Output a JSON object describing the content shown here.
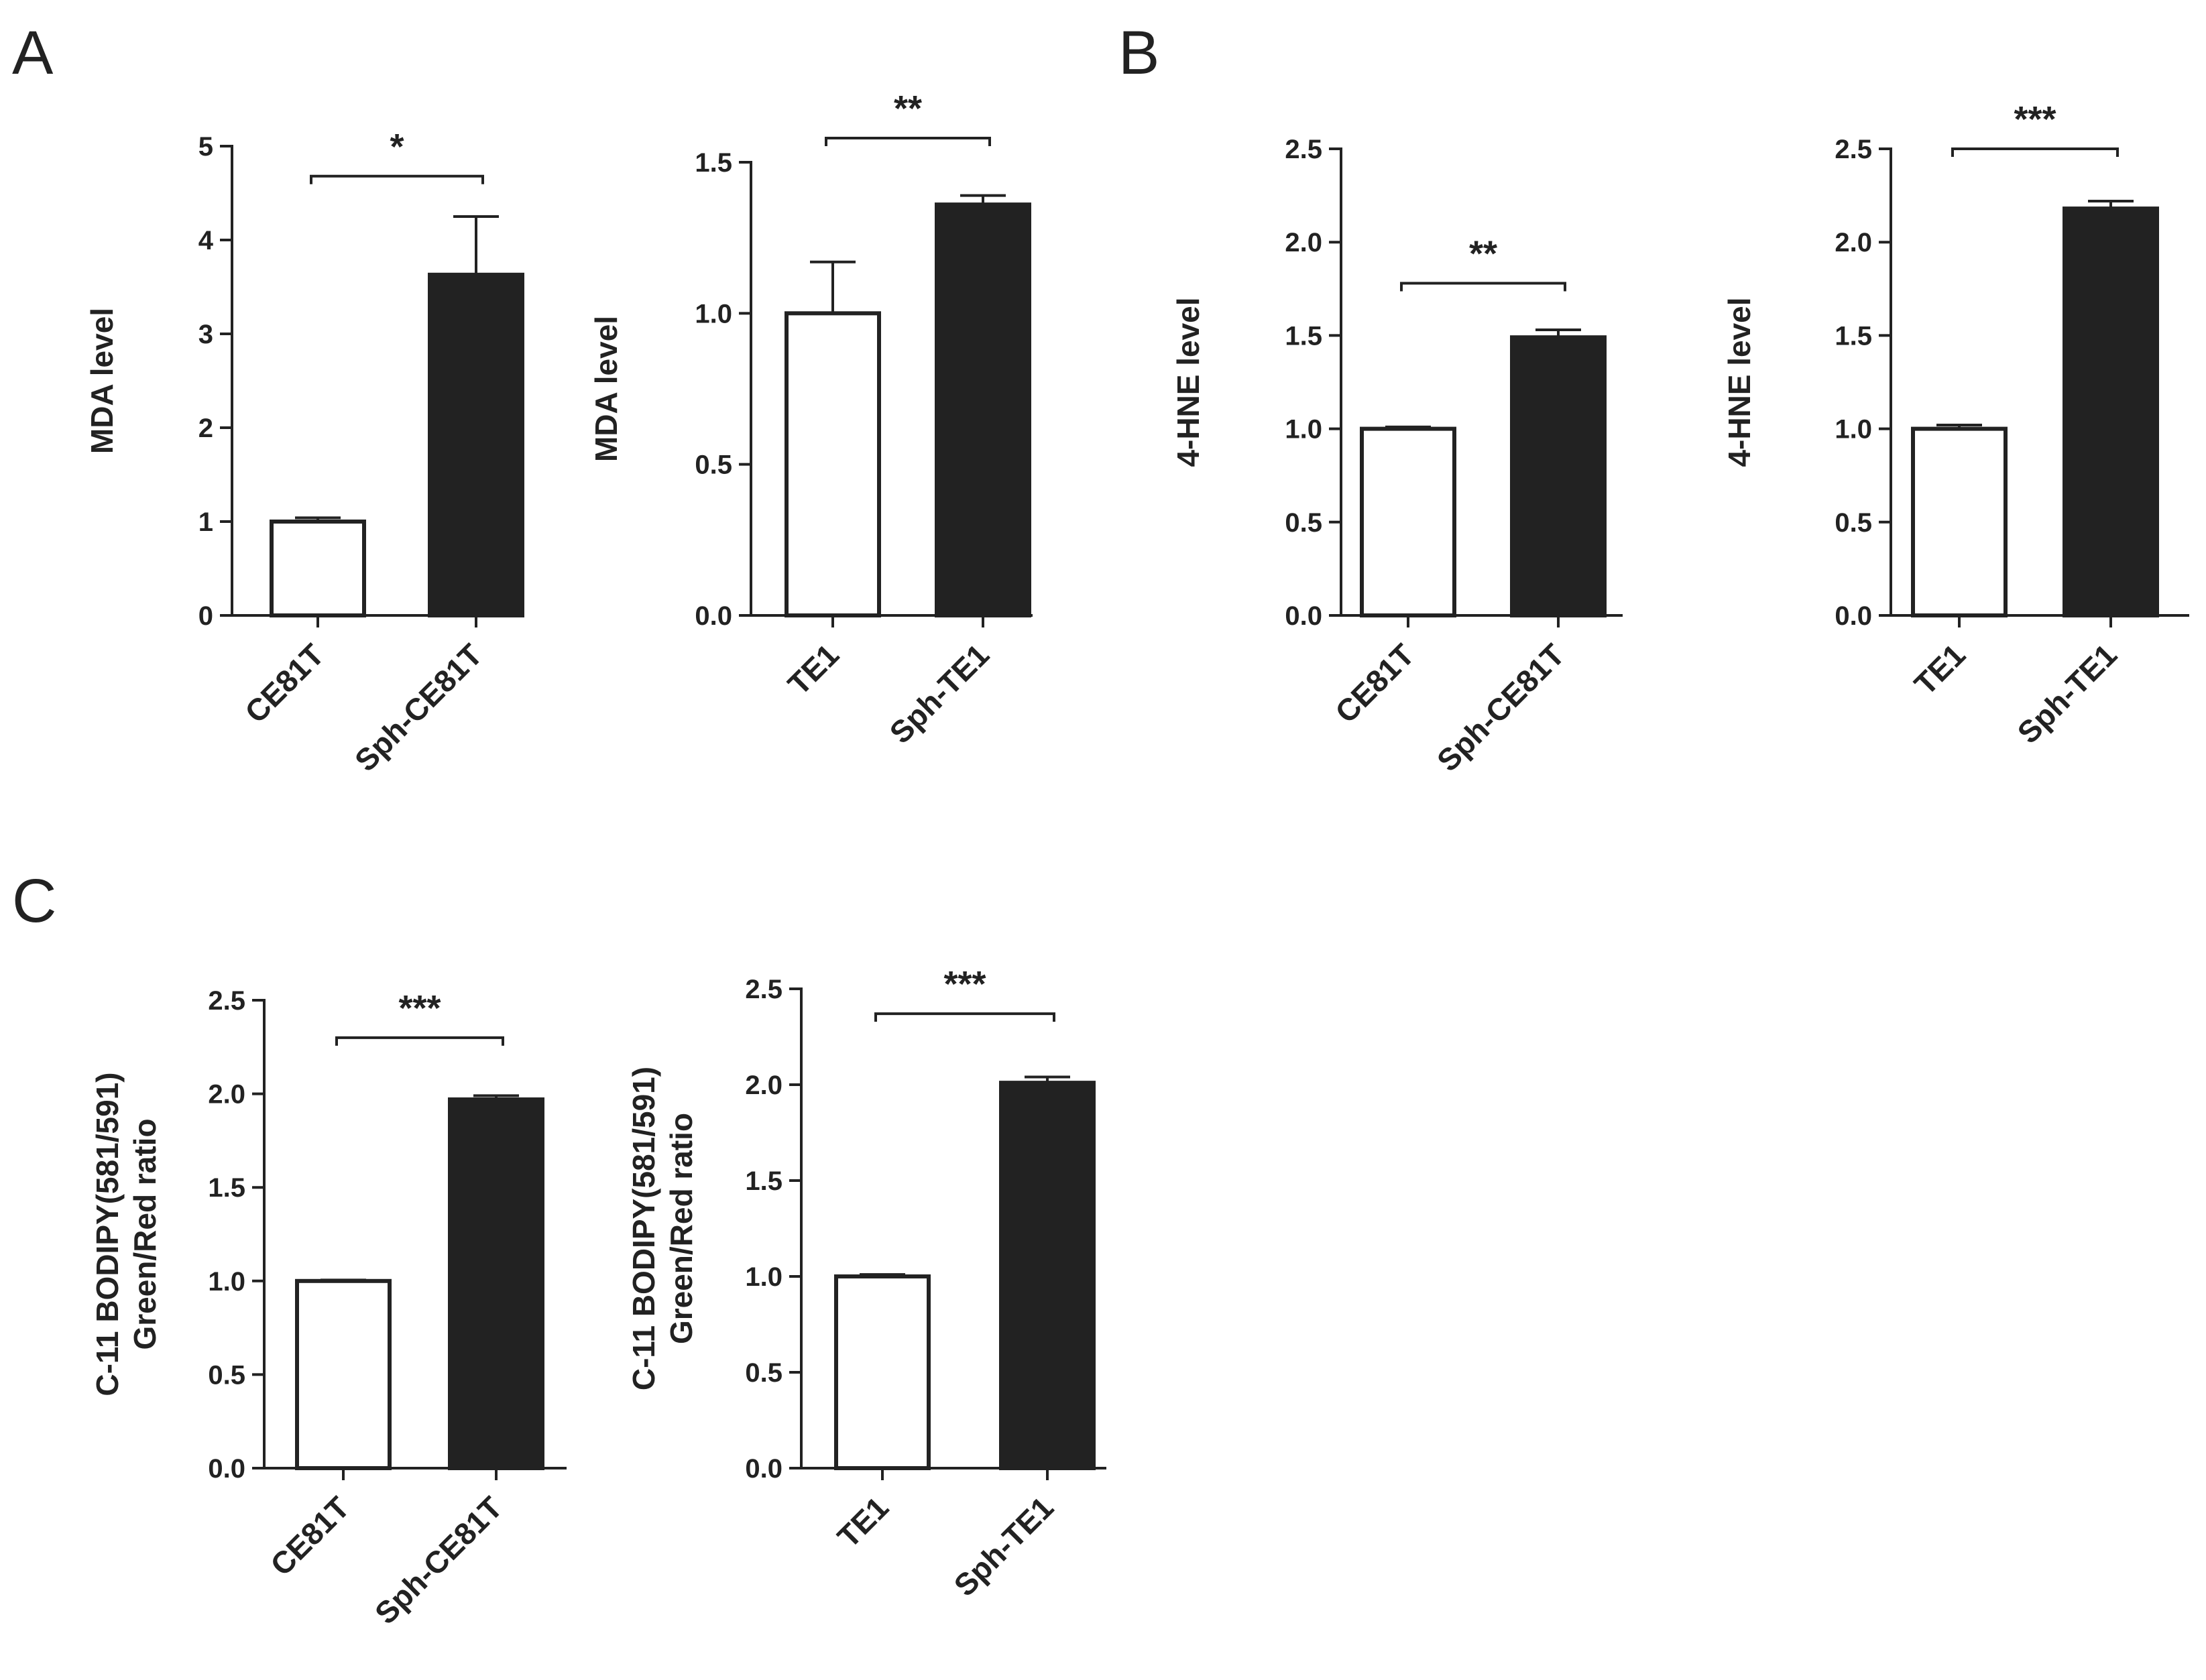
{
  "panels": [
    {
      "letter": "A"
    },
    {
      "letter": "B"
    },
    {
      "letter": "C"
    }
  ],
  "chart_data": [
    {
      "type": "bar",
      "panel": "A",
      "title": "",
      "categories": [
        "CE81T",
        "Sph-CE81T"
      ],
      "values": [
        1.0,
        3.63
      ],
      "errors": [
        0.04,
        0.62
      ],
      "bar_colors": [
        "#ffffff",
        "#222222"
      ],
      "ylabel": [
        "MDA level"
      ],
      "ylim": [
        0,
        5
      ],
      "yticks": [
        0,
        1,
        2,
        3,
        4,
        5
      ],
      "ytick_labels": [
        "0",
        "1",
        "2",
        "3",
        "4",
        "5"
      ],
      "significance": "*",
      "sig_y": 4.68
    },
    {
      "type": "bar",
      "panel": "A",
      "title": "",
      "categories": [
        "TE1",
        "Sph-TE1"
      ],
      "values": [
        1.0,
        1.36
      ],
      "errors": [
        0.17,
        0.03
      ],
      "bar_colors": [
        "#ffffff",
        "#222222"
      ],
      "ylabel": [
        "MDA level"
      ],
      "ylim": [
        0,
        1.5
      ],
      "yticks": [
        0,
        0.5,
        1.0,
        1.5
      ],
      "ytick_labels": [
        "0.0",
        "0.5",
        "1.0",
        "1.5"
      ],
      "significance": "**",
      "sig_y": 1.58
    },
    {
      "type": "bar",
      "panel": "B",
      "title": "",
      "categories": [
        "CE81T",
        "Sph-CE81T"
      ],
      "values": [
        1.0,
        1.49
      ],
      "errors": [
        0.01,
        0.04
      ],
      "bar_colors": [
        "#ffffff",
        "#222222"
      ],
      "ylabel": [
        "4-HNE level"
      ],
      "ylim": [
        0,
        2.5
      ],
      "yticks": [
        0,
        0.5,
        1.0,
        1.5,
        2.0,
        2.5
      ],
      "ytick_labels": [
        "0.0",
        "0.5",
        "1.0",
        "1.5",
        "2.0",
        "2.5"
      ],
      "significance": "**",
      "sig_y": 1.78
    },
    {
      "type": "bar",
      "panel": "B",
      "title": "",
      "categories": [
        "TE1",
        "Sph-TE1"
      ],
      "values": [
        1.0,
        2.18
      ],
      "errors": [
        0.02,
        0.04
      ],
      "bar_colors": [
        "#ffffff",
        "#222222"
      ],
      "ylabel": [
        "4-HNE level"
      ],
      "ylim": [
        0,
        2.5
      ],
      "yticks": [
        0,
        0.5,
        1.0,
        1.5,
        2.0,
        2.5
      ],
      "ytick_labels": [
        "0.0",
        "0.5",
        "1.0",
        "1.5",
        "2.0",
        "2.5"
      ],
      "significance": "***",
      "sig_y": 2.5
    },
    {
      "type": "bar",
      "panel": "C",
      "title": "",
      "categories": [
        "CE81T",
        "Sph-CE81T"
      ],
      "values": [
        1.0,
        1.97
      ],
      "errors": [
        0.005,
        0.02
      ],
      "bar_colors": [
        "#ffffff",
        "#222222"
      ],
      "ylabel": [
        "C-11 BODIPY(581/591)",
        "Green/Red ratio"
      ],
      "ylim": [
        0,
        2.5
      ],
      "yticks": [
        0,
        0.5,
        1.0,
        1.5,
        2.0,
        2.5
      ],
      "ytick_labels": [
        "0.0",
        "0.5",
        "1.0",
        "1.5",
        "2.0",
        "2.5"
      ],
      "significance": "***",
      "sig_y": 2.3
    },
    {
      "type": "bar",
      "panel": "C",
      "title": "",
      "categories": [
        "TE1",
        "Sph-TE1"
      ],
      "values": [
        1.0,
        2.01
      ],
      "errors": [
        0.01,
        0.03
      ],
      "bar_colors": [
        "#ffffff",
        "#222222"
      ],
      "ylabel": [
        "C-11 BODIPY(581/591)",
        "Green/Red ratio"
      ],
      "ylim": [
        0,
        2.5
      ],
      "yticks": [
        0,
        0.5,
        1.0,
        1.5,
        2.0,
        2.5
      ],
      "ytick_labels": [
        "0.0",
        "0.5",
        "1.0",
        "1.5",
        "2.0",
        "2.5"
      ],
      "significance": "***",
      "sig_y": 2.37
    }
  ]
}
